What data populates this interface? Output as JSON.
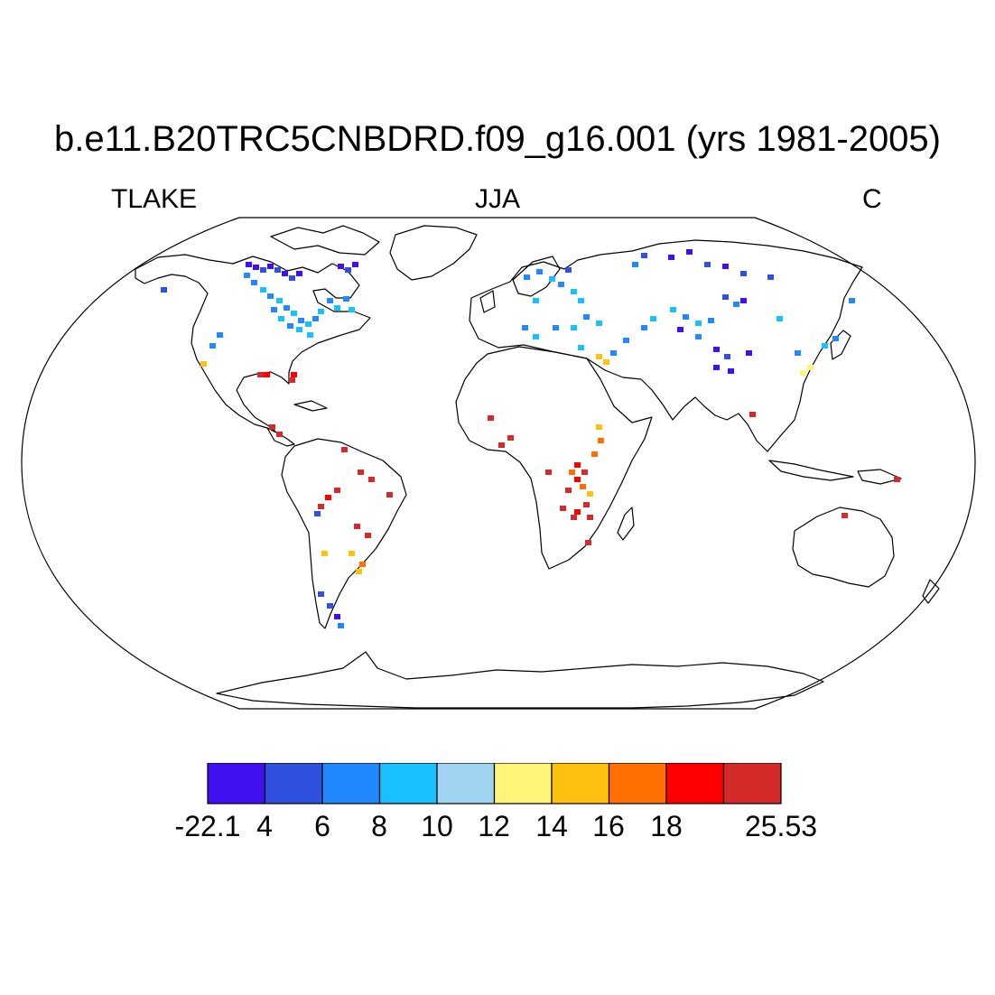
{
  "title": "b.e11.B20TRC5CNBDRD.f09_g16.001 (yrs 1981-2005)",
  "left_label": "TLAKE",
  "center_label": "JJA",
  "right_label": "C",
  "colorbar": {
    "colors": [
      "#4010f0",
      "#3050e0",
      "#2288ff",
      "#18c0ff",
      "#a0d4f0",
      "#fff47a",
      "#ffc010",
      "#ff7000",
      "#ff0000",
      "#d42a2a"
    ],
    "labels": [
      "-22.1",
      "4",
      "6",
      "8",
      "10",
      "12",
      "14",
      "16",
      "18",
      "",
      "25.53"
    ]
  },
  "map": {
    "projection": "Robinson",
    "variable": "TLAKE",
    "season": "JJA",
    "units": "C",
    "coastline_color": "#000000",
    "background": "#ffffff"
  }
}
